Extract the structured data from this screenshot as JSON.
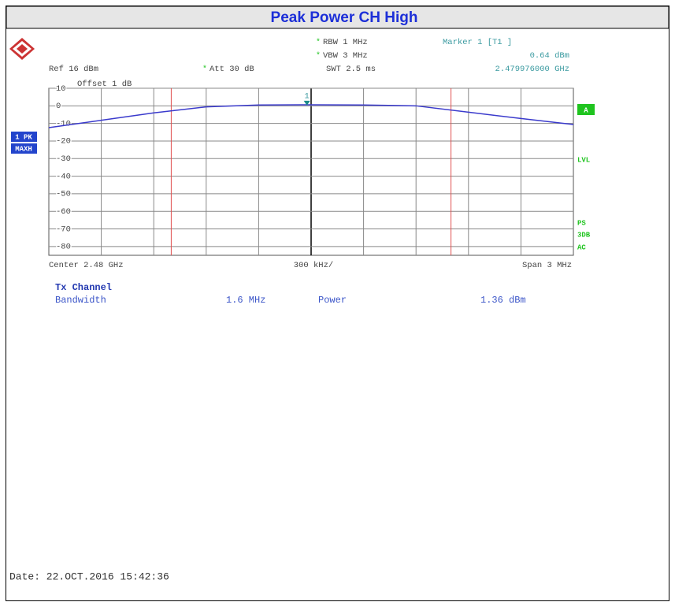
{
  "title": "Peak Power CH High",
  "settings": {
    "rbw": "RBW 1 MHz",
    "vbw": "VBW 3 MHz",
    "swt": "SWT 2.5 ms",
    "ref": "Ref  16 dBm",
    "att": "Att  30 dB",
    "offset": "Offset  1 dB"
  },
  "marker_info": {
    "name": "Marker 1 [T1 ]",
    "level": "0.64 dBm",
    "freq": "2.479976000 GHz"
  },
  "side": {
    "trace": "1 PK",
    "mode": "MAXH",
    "a": "A",
    "lvl": "LVL",
    "ps": "PS",
    "db": "3DB",
    "ac": "AC"
  },
  "axis_text": {
    "center": "Center 2.48 GHz",
    "div": "300 kHz/",
    "span": "Span 3 MHz"
  },
  "results": {
    "heading": "Tx Channel",
    "bw_label": "Bandwidth",
    "bw_value": "1.6 MHz",
    "power_label": "Power",
    "power_value": "1.36 dBm"
  },
  "date": "Date: 22.OCT.2016  15:42:36",
  "chart_data": {
    "type": "line",
    "xlim": [
      2478.5,
      2481.5
    ],
    "ylim": [
      -85,
      10
    ],
    "yticks": [
      10,
      0,
      -10,
      -20,
      -30,
      -40,
      -50,
      -60,
      -70,
      -80
    ],
    "grid": true,
    "x": [
      2478.5,
      2478.8,
      2479.1,
      2479.4,
      2479.7,
      2480.0,
      2480.3,
      2480.6,
      2480.9,
      2481.2,
      2481.5
    ],
    "series": [
      {
        "color": "#3a3acc",
        "values": [
          -12.4,
          -8.2,
          -4.0,
          -0.6,
          0.5,
          0.6,
          0.5,
          0.0,
          -3.6,
          -7.2,
          -10.6
        ]
      }
    ],
    "channel_lines": [
      2479.2,
      2480.8
    ],
    "channel_color": "#e05050",
    "marker": {
      "x": 2479.976,
      "y": 0.64,
      "label": "1"
    }
  }
}
